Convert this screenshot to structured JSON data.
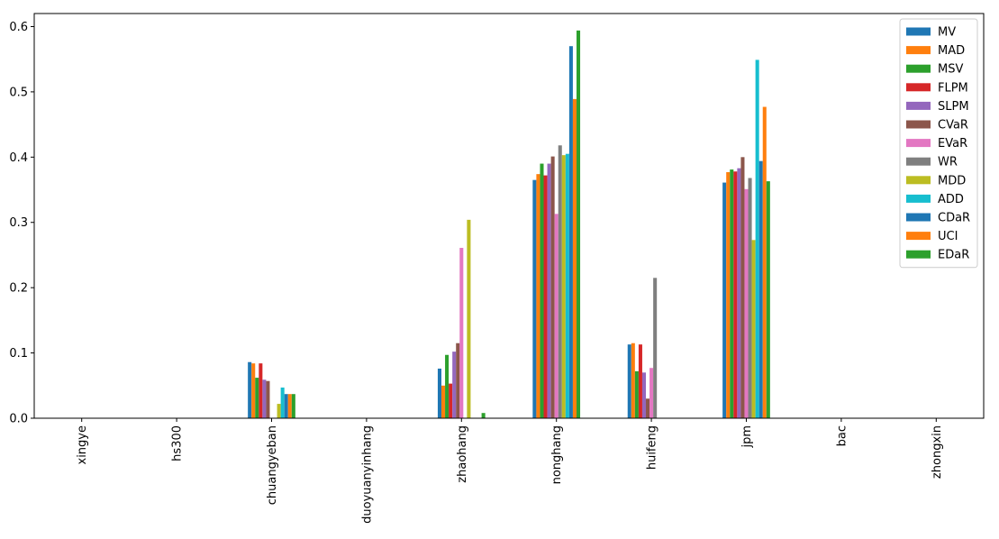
{
  "chart_data": {
    "type": "bar",
    "title": "",
    "xlabel": "",
    "ylabel": "",
    "ylim": [
      0,
      0.62
    ],
    "yticks": [
      "0.0",
      "0.1",
      "0.2",
      "0.3",
      "0.4",
      "0.5",
      "0.6"
    ],
    "grid": false,
    "legend_position": "top-right",
    "categories": [
      "xingye",
      "hs300",
      "chuangyeban",
      "duoyuanyinhang",
      "zhaohang",
      "nonghang",
      "huifeng",
      "jpm",
      "bac",
      "zhongxin"
    ],
    "series": [
      {
        "name": "MV",
        "color": "#1f77b4",
        "values": [
          0,
          0,
          0.086,
          0,
          0.076,
          0.365,
          0.113,
          0.361,
          0,
          0
        ]
      },
      {
        "name": "MAD",
        "color": "#ff7f0e",
        "values": [
          0,
          0,
          0.084,
          0,
          0.05,
          0.374,
          0.115,
          0.377,
          0,
          0
        ]
      },
      {
        "name": "MSV",
        "color": "#2ca02c",
        "values": [
          0,
          0,
          0.062,
          0,
          0.097,
          0.39,
          0.072,
          0.381,
          0,
          0
        ]
      },
      {
        "name": "FLPM",
        "color": "#d62728",
        "values": [
          0,
          0,
          0.084,
          0,
          0.053,
          0.372,
          0.113,
          0.378,
          0,
          0
        ]
      },
      {
        "name": "SLPM",
        "color": "#9467bd",
        "values": [
          0,
          0,
          0.059,
          0,
          0.102,
          0.39,
          0.07,
          0.383,
          0,
          0
        ]
      },
      {
        "name": "CVaR",
        "color": "#8c564b",
        "values": [
          0,
          0,
          0.057,
          0,
          0.115,
          0.401,
          0.03,
          0.4,
          0,
          0
        ]
      },
      {
        "name": "EVaR",
        "color": "#e377c2",
        "values": [
          0,
          0,
          0,
          0,
          0.261,
          0.313,
          0.077,
          0.351,
          0,
          0
        ]
      },
      {
        "name": "WR",
        "color": "#7f7f7f",
        "values": [
          0,
          0,
          0,
          0,
          0,
          0.418,
          0.215,
          0.368,
          0,
          0
        ]
      },
      {
        "name": "MDD",
        "color": "#bcbd22",
        "values": [
          0,
          0,
          0.022,
          0,
          0.304,
          0.403,
          0,
          0.273,
          0,
          0
        ]
      },
      {
        "name": "ADD",
        "color": "#17becf",
        "values": [
          0,
          0,
          0.047,
          0,
          0,
          0.405,
          0,
          0.549,
          0,
          0
        ]
      },
      {
        "name": "CDaR",
        "color": "#1f77b4",
        "values": [
          0,
          0,
          0.037,
          0,
          0,
          0.57,
          0,
          0.394,
          0,
          0
        ]
      },
      {
        "name": "UCI",
        "color": "#ff7f0e",
        "values": [
          0,
          0,
          0.037,
          0,
          0,
          0.489,
          0,
          0.477,
          0,
          0
        ]
      },
      {
        "name": "EDaR",
        "color": "#2ca02c",
        "values": [
          0,
          0,
          0.037,
          0,
          0.008,
          0.594,
          0,
          0.363,
          0,
          0
        ]
      }
    ]
  }
}
